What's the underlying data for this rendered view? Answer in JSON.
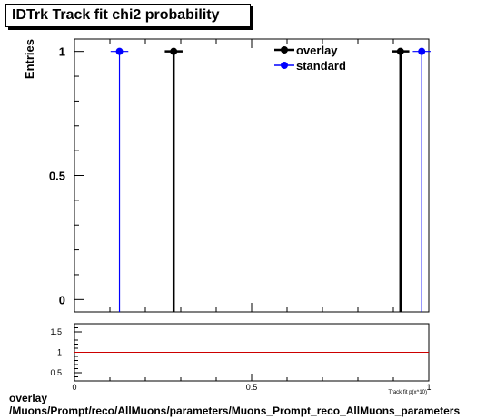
{
  "title": "IDTrk Track fit chi2 probability",
  "ylabel": "Entries",
  "ratio_xlabel": "Track fit p(x^10)",
  "caption": {
    "line1": "overlay",
    "line2": "/Muons/Prompt/reco/AllMuons/parameters/Muons_Prompt_reco_AllMuons_parameters"
  },
  "legend_position": "top-right",
  "colors": {
    "overlay": "#000000",
    "standard": "#0000ff",
    "ratio_line": "#cc0000"
  },
  "chart_data": [
    {
      "type": "scatter",
      "role": "main",
      "ylabel": "Entries",
      "xlim": [
        0,
        1
      ],
      "ylim": [
        -0.05,
        1.05
      ],
      "yticks": [
        0,
        0.5,
        1
      ],
      "ytick_labels": [
        "0",
        "0.5",
        "1"
      ],
      "grid": false,
      "legend": [
        "overlay",
        "standard"
      ],
      "series": [
        {
          "name": "overlay",
          "color": "#000000",
          "points": [
            {
              "x": 0.28,
              "y": 1,
              "xerr": 0.025
            },
            {
              "x": 0.92,
              "y": 1,
              "xerr": 0.025
            }
          ]
        },
        {
          "name": "standard",
          "color": "#0000ff",
          "points": [
            {
              "x": 0.127,
              "y": 1,
              "xerr": 0.025
            },
            {
              "x": 0.98,
              "y": 1,
              "xerr": 0.025
            }
          ]
        }
      ]
    },
    {
      "type": "line",
      "role": "ratio",
      "xlim": [
        0,
        1
      ],
      "ylim": [
        0.3,
        1.7
      ],
      "xticks": [
        0,
        0.5,
        1
      ],
      "xtick_labels": [
        "0",
        "0.5",
        "1"
      ],
      "yticks": [
        0.5,
        1,
        1.5
      ],
      "ytick_labels": [
        "0.5",
        "1",
        "1.5"
      ],
      "xlabel": "Track fit p(x^10)",
      "reference_line": 1
    }
  ]
}
